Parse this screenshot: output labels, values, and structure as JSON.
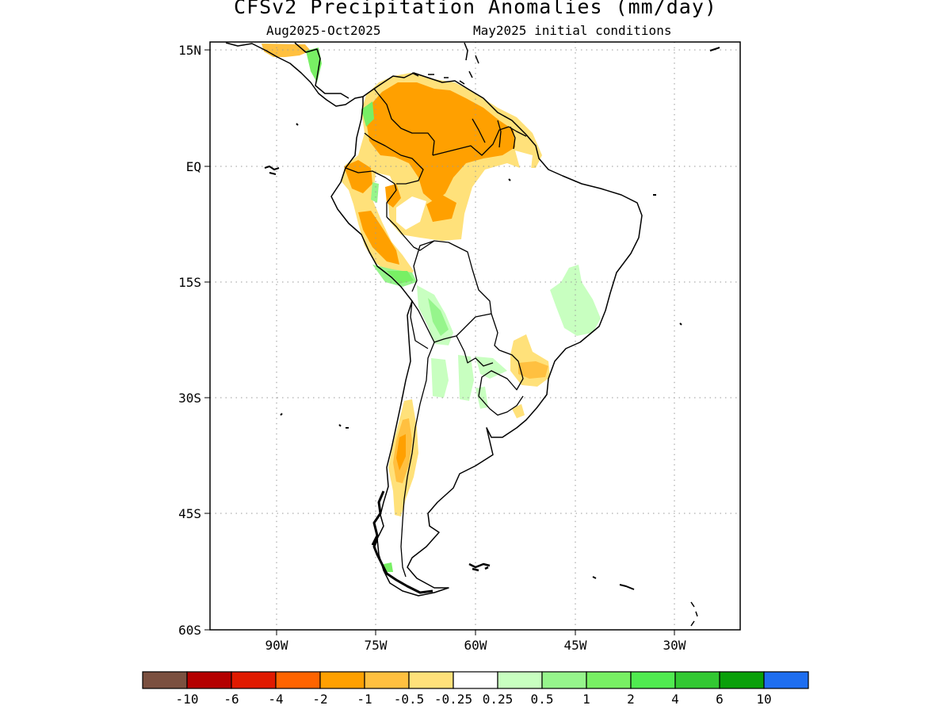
{
  "title": "CFSv2 Precipitation Anomalies (mm/day)",
  "subtitle_left": "Aug2025-Oct2025",
  "subtitle_right": "May2025 initial conditions",
  "lat_labels": [
    "15N",
    "EQ",
    "15S",
    "30S",
    "45S",
    "60S"
  ],
  "lon_labels": [
    "90W",
    "75W",
    "60W",
    "45W",
    "30W"
  ],
  "colorbar": {
    "colors": [
      "#7b5040",
      "#b40000",
      "#e01a00",
      "#ff6400",
      "#ffa000",
      "#ffc040",
      "#ffe17a",
      "#ffffff",
      "#c8ffc0",
      "#96f58c",
      "#78f064",
      "#50eb50",
      "#32c832",
      "#0aa00a",
      "#1e6ef0"
    ],
    "tick_labels": [
      "-10",
      "-6",
      "-4",
      "-2",
      "-1",
      "-0.5",
      "-0.25",
      "0.25",
      "0.5",
      "1",
      "2",
      "4",
      "6",
      "10"
    ]
  },
  "map": {
    "region": "South America",
    "lon_range": [
      -99,
      -19
    ],
    "lat_range": [
      -60,
      16
    ],
    "grid": "dotted",
    "anomaly_summary": [
      {
        "area": "Colombia / Venezuela / Guianas",
        "sign": "dry",
        "range": "-0.5 to -2"
      },
      {
        "area": "Ecuador / Peru Andes",
        "sign": "dry",
        "range": "-0.25 to -2"
      },
      {
        "area": "Western Amazon",
        "sign": "dry",
        "range": "-0.25 to -1"
      },
      {
        "area": "Central Chile",
        "sign": "dry",
        "range": "-0.25 to -1"
      },
      {
        "area": "Southern Brazil",
        "sign": "dry",
        "range": "-0.25 to -1"
      },
      {
        "area": "Eastern Brazil",
        "sign": "wet",
        "range": "0.25 to 0.5"
      },
      {
        "area": "Bolivia / Paraguay / northern Argentina",
        "sign": "wet",
        "range": "0.25 to 1"
      },
      {
        "area": "Central America / Panama",
        "sign": "wet",
        "range": "0.25 to 2"
      }
    ]
  }
}
